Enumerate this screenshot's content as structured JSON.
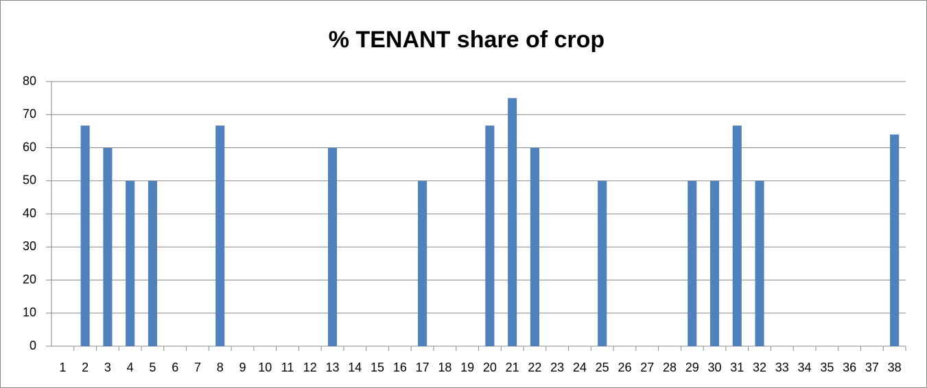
{
  "chart_data": {
    "type": "bar",
    "title": "% TENANT share of crop",
    "categories": [
      "1",
      "2",
      "3",
      "4",
      "5",
      "6",
      "7",
      "8",
      "9",
      "10",
      "11",
      "12",
      "13",
      "14",
      "15",
      "16",
      "17",
      "18",
      "19",
      "20",
      "21",
      "22",
      "23",
      "24",
      "25",
      "26",
      "27",
      "28",
      "29",
      "30",
      "31",
      "32",
      "33",
      "34",
      "35",
      "36",
      "37",
      "38"
    ],
    "values": [
      0,
      66.7,
      60,
      50,
      50,
      0,
      0,
      66.7,
      0,
      0,
      0,
      0,
      60,
      0,
      0,
      0,
      50,
      0,
      0,
      66.7,
      75,
      60,
      0,
      0,
      50,
      0,
      0,
      0,
      50,
      50,
      66.7,
      50,
      0,
      0,
      0,
      0,
      0,
      64
    ],
    "color": "#4f81bd",
    "ylim": [
      0,
      80
    ],
    "yticks": [
      0,
      10,
      20,
      30,
      40,
      50,
      60,
      70,
      80
    ],
    "grid": true
  }
}
